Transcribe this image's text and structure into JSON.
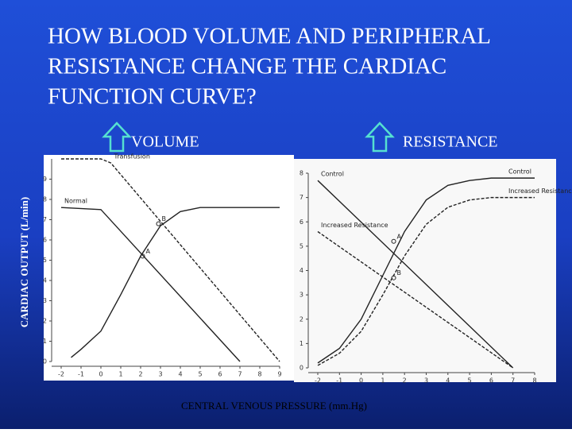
{
  "title": [
    "HOW BLOOD VOLUME AND PERIPHERAL",
    "RESISTANCE CHANGE THE CARDIAC",
    "FUNCTION CURVE?"
  ],
  "y_label": "CARDIAC OUTPUT (L/min)",
  "x_label": "CENTRAL VENOUS  PRESSURE (mm.Hg)",
  "chart_data": [
    {
      "type": "line",
      "title": "VOLUME",
      "xlim": [
        -2,
        9
      ],
      "xticks": [
        -2,
        -1,
        0,
        1,
        2,
        3,
        4,
        5,
        6,
        7,
        8,
        9
      ],
      "ylim": [
        0,
        10
      ],
      "yticks": [
        0,
        1,
        2,
        3,
        4,
        5,
        6,
        7,
        8,
        9
      ],
      "series": [
        {
          "color": "#222222",
          "dash": false,
          "x": [
            -1.5,
            -1,
            0,
            1,
            2,
            3,
            4,
            5,
            6,
            7,
            8,
            9
          ],
          "values": [
            0.2,
            0.6,
            1.5,
            3.3,
            5.2,
            6.7,
            7.4,
            7.6,
            7.6,
            7.6,
            7.6,
            7.6
          ]
        },
        {
          "name": "Normal",
          "color": "#222222",
          "dash": false,
          "x": [
            -2,
            0,
            7
          ],
          "values": [
            7.6,
            7.5,
            0
          ]
        },
        {
          "name": "Transfusion",
          "color": "#222222",
          "dash": true,
          "x": [
            -2,
            0,
            0.5,
            9
          ],
          "values": [
            10,
            10,
            9.8,
            0
          ]
        }
      ],
      "annotations": [
        {
          "text": "A",
          "x": 2.1,
          "y": 5.2
        },
        {
          "text": "B",
          "x": 2.9,
          "y": 6.8
        }
      ]
    },
    {
      "type": "line",
      "title": "RESISTANCE",
      "xlim": [
        -2,
        8
      ],
      "xticks": [
        -2,
        -1,
        0,
        1,
        2,
        3,
        4,
        5,
        6,
        7,
        8
      ],
      "ylim": [
        0,
        8
      ],
      "yticks": [
        0,
        1,
        2,
        3,
        4,
        5,
        6,
        7,
        8
      ],
      "series": [
        {
          "name": "Control",
          "color": "#222222",
          "dash": false,
          "x": [
            -2,
            -1,
            0,
            1,
            2,
            3,
            4,
            5,
            6,
            7,
            8
          ],
          "values": [
            0.2,
            0.8,
            2,
            3.8,
            5.6,
            6.9,
            7.5,
            7.7,
            7.8,
            7.8,
            7.8
          ]
        },
        {
          "name": "Increased   Resistance",
          "color": "#222222",
          "dash": true,
          "x": [
            -2,
            -1,
            0,
            1,
            2,
            3,
            4,
            5,
            6,
            7,
            8
          ],
          "values": [
            0.1,
            0.6,
            1.5,
            3,
            4.6,
            5.9,
            6.6,
            6.9,
            7,
            7,
            7
          ]
        },
        {
          "name": "Control",
          "color": "#222222",
          "dash": false,
          "x": [
            -2,
            7
          ],
          "values": [
            7.7,
            0
          ]
        },
        {
          "name": "Increased Resistance",
          "color": "#222222",
          "dash": true,
          "x": [
            -2,
            7
          ],
          "values": [
            5.6,
            0
          ]
        }
      ],
      "annotations": [
        {
          "text": "A",
          "x": 1.5,
          "y": 5.2
        },
        {
          "text": "B",
          "x": 1.5,
          "y": 3.7
        }
      ]
    }
  ]
}
